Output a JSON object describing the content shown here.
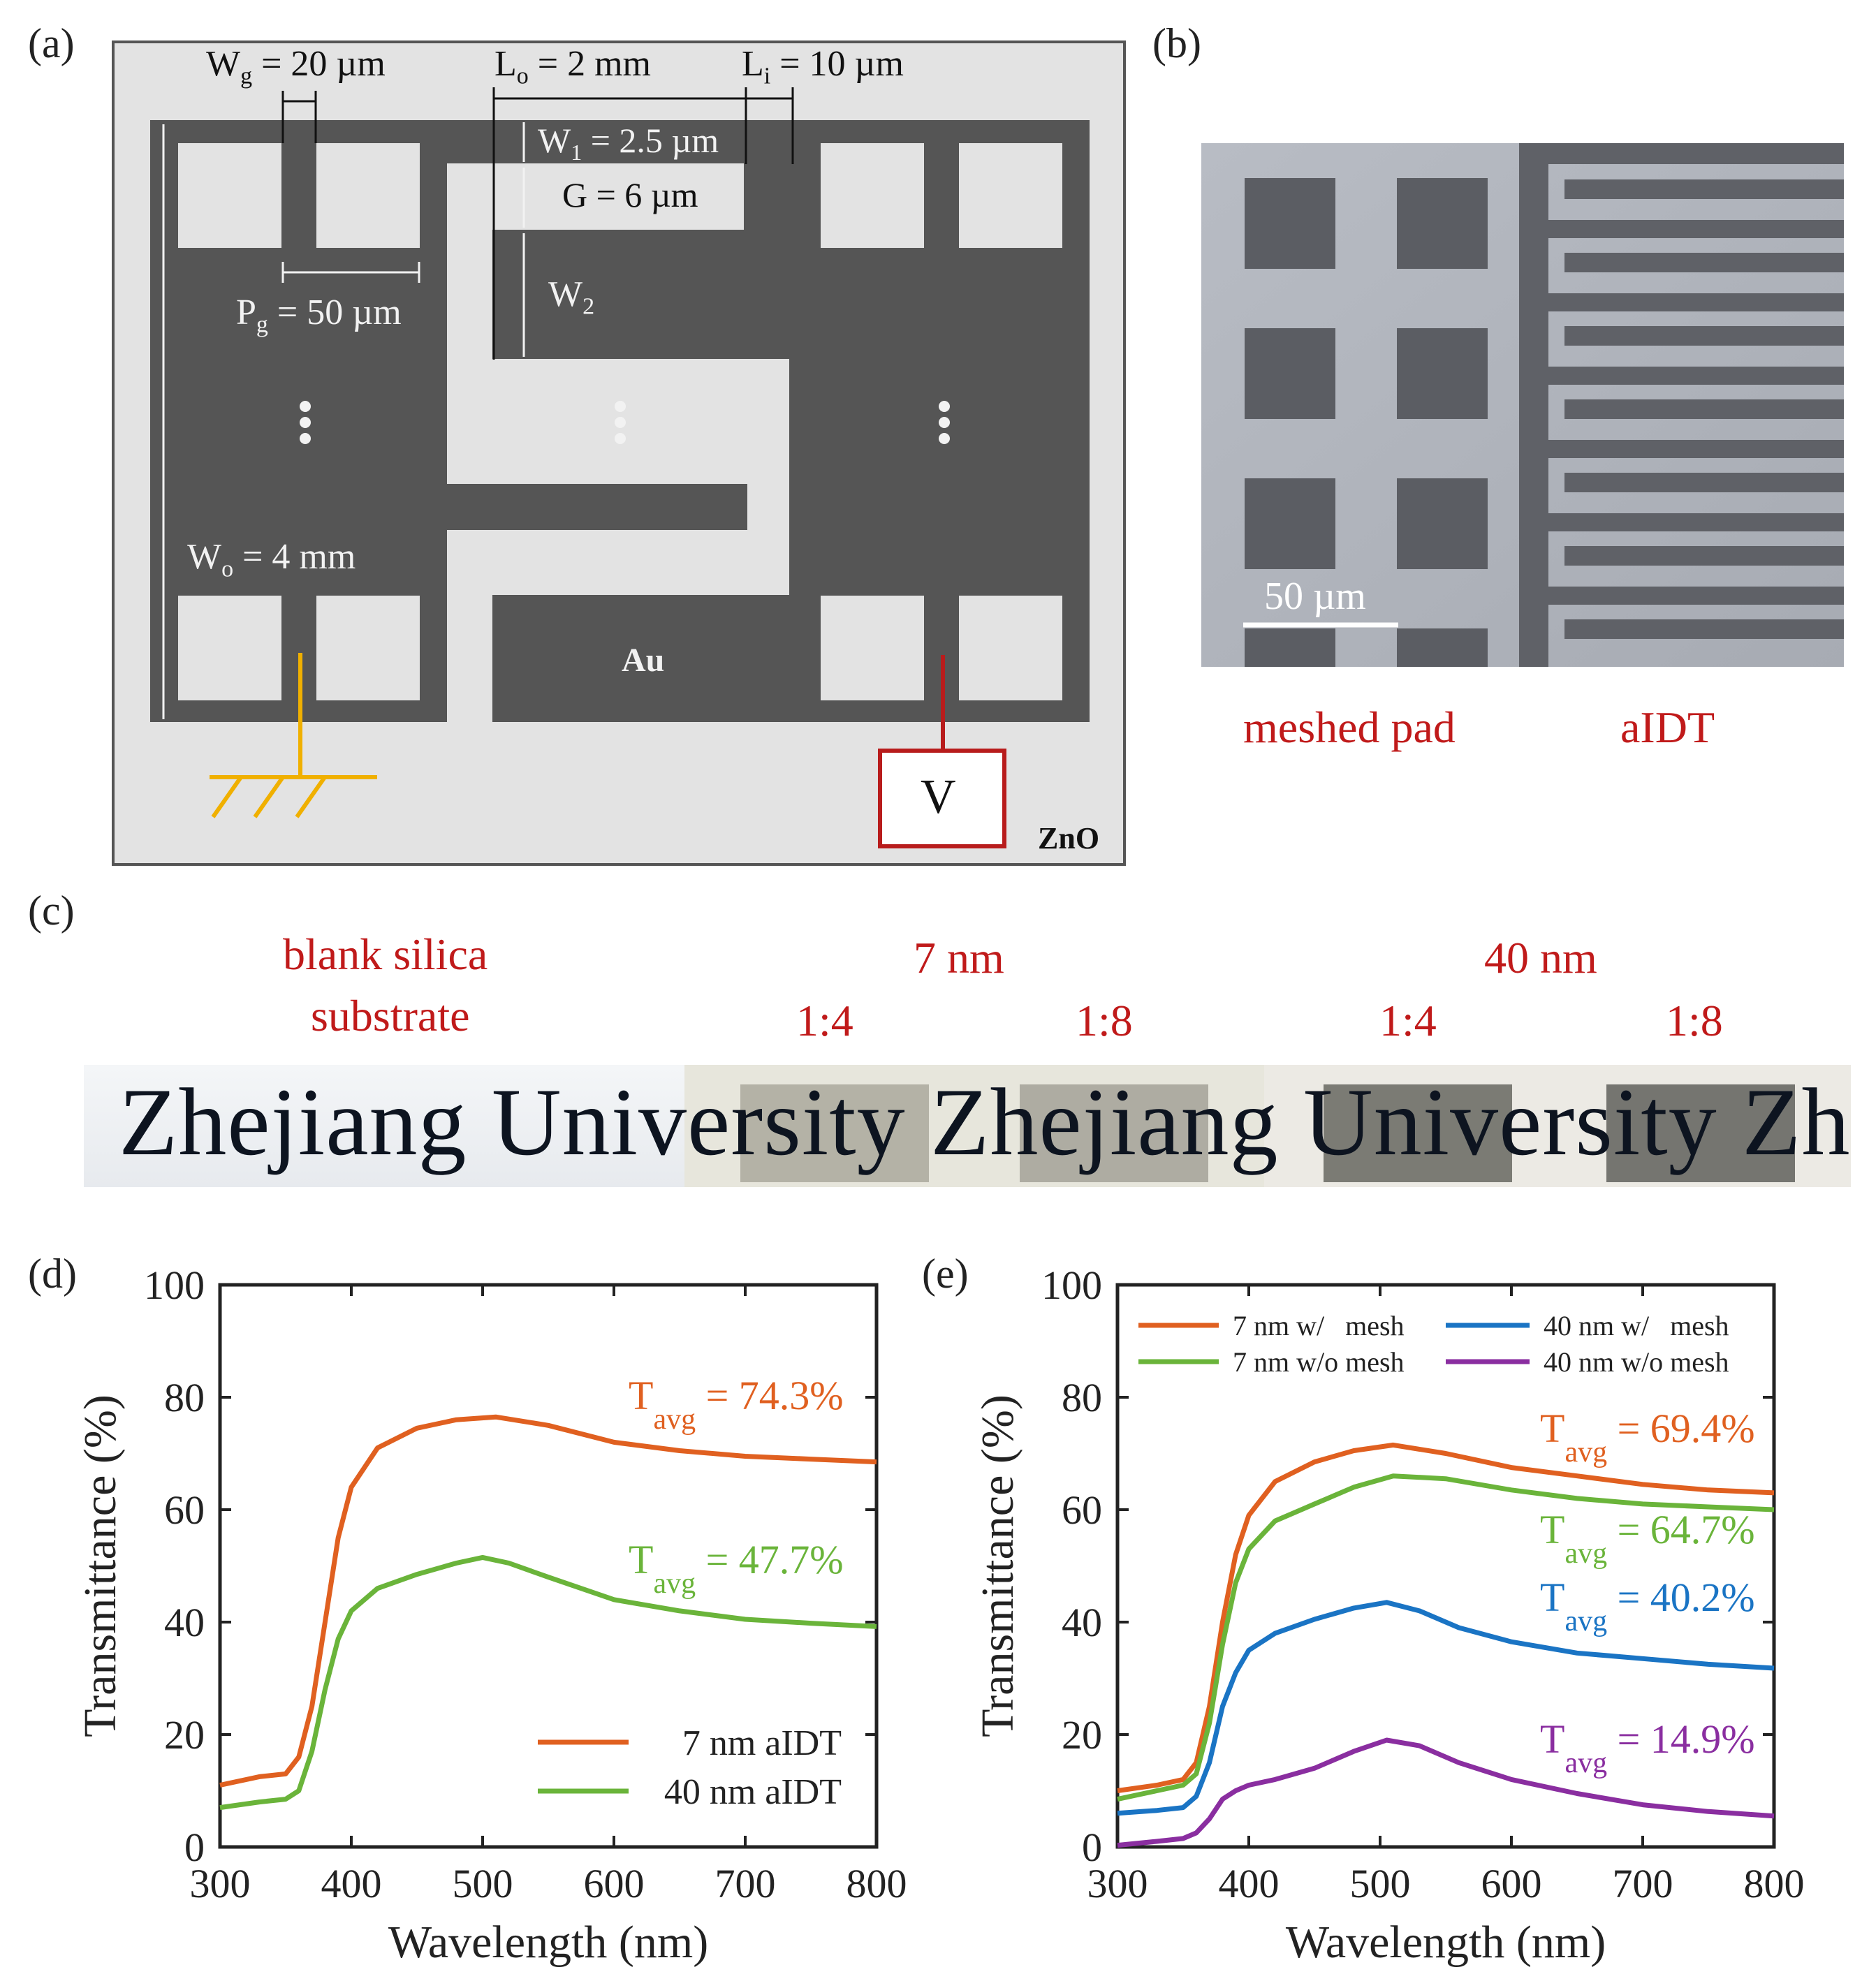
{
  "panels": {
    "a": {
      "tag": "(a)",
      "labels": {
        "wg_main": "W",
        "wg_sub": "g",
        "wg_val": " = 20 µm",
        "lo_main": "L",
        "lo_sub": "o",
        "lo_val": " = 2 mm",
        "li_main": "L",
        "li_sub": "i",
        "li_val": " = 10 µm",
        "w1_main": "W",
        "w1_sub": "1",
        "w1_val": " = 2.5 µm",
        "g_text": "G = 6 µm",
        "w2_main": "W",
        "w2_sub": "2",
        "pg_main": "P",
        "pg_sub": "g",
        "pg_val": " = 50 µm",
        "wo_main": "W",
        "wo_sub": "o",
        "wo_val": " = 4 mm",
        "au": "Au",
        "zno": "ZnO",
        "v": "V"
      },
      "colors": {
        "metal": "#555555",
        "substrate": "#e3e3e3",
        "ground": "#f0b000",
        "source": "#b81c1c"
      }
    },
    "b": {
      "tag": "(b)",
      "scalebar": "50 µm",
      "caption_left": "meshed pad",
      "caption_right": "aIDT"
    },
    "c": {
      "tag": "(c)",
      "blank_line1": "blank silica",
      "blank_line2": "substrate",
      "group1": "7 nm",
      "group2": "40 nm",
      "r1": "1:4",
      "r2": "1:8",
      "r3": "1:4",
      "r4": "1:8",
      "photo_text": "Zhejiang University Zhejiang University Zhejiang"
    },
    "d": {
      "tag": "(d)"
    },
    "e": {
      "tag": "(e)"
    }
  },
  "chart_data": [
    {
      "type": "line",
      "title": "",
      "xlabel": "Wavelength (nm)",
      "ylabel": "Transmittance (%)",
      "xlim": [
        300,
        800
      ],
      "ylim": [
        0,
        100
      ],
      "xticks": [
        "300",
        "400",
        "500",
        "600",
        "700",
        "800"
      ],
      "yticks": [
        "0",
        "20",
        "40",
        "60",
        "80",
        "100"
      ],
      "legend_position": "bottom-right",
      "series": [
        {
          "name": "7 nm aIDT",
          "color": "#e06020",
          "x": [
            300,
            330,
            350,
            360,
            370,
            380,
            390,
            400,
            420,
            450,
            480,
            510,
            550,
            600,
            650,
            700,
            750,
            800
          ],
          "y": [
            11,
            12.5,
            13,
            16,
            25,
            40,
            55,
            64,
            71,
            74.5,
            76,
            76.5,
            75,
            72,
            70.5,
            69.5,
            69,
            68.5
          ]
        },
        {
          "name": "40 nm aIDT",
          "color": "#6ab43a",
          "x": [
            300,
            330,
            350,
            360,
            370,
            380,
            390,
            400,
            420,
            450,
            480,
            500,
            520,
            550,
            600,
            650,
            700,
            750,
            800
          ],
          "y": [
            7,
            8,
            8.5,
            10,
            17,
            28,
            37,
            42,
            46,
            48.5,
            50.5,
            51.5,
            50.5,
            48,
            44,
            42,
            40.5,
            39.8,
            39.2
          ]
        }
      ],
      "annotations": [
        {
          "main": "T",
          "sub": "avg",
          "value": " = 74.3%",
          "color": "#e06020"
        },
        {
          "main": "T",
          "sub": "avg",
          "value": " = 47.7%",
          "color": "#6ab43a"
        }
      ]
    },
    {
      "type": "line",
      "title": "",
      "xlabel": "Wavelength (nm)",
      "ylabel": "Transmittance (%)",
      "xlim": [
        300,
        800
      ],
      "ylim": [
        0,
        100
      ],
      "xticks": [
        "300",
        "400",
        "500",
        "600",
        "700",
        "800"
      ],
      "yticks": [
        "0",
        "20",
        "40",
        "60",
        "80",
        "100"
      ],
      "legend_position": "top",
      "series": [
        {
          "name": "7 nm w/   mesh",
          "color": "#e06020",
          "x": [
            300,
            330,
            350,
            360,
            370,
            380,
            390,
            400,
            420,
            450,
            480,
            510,
            550,
            600,
            650,
            700,
            750,
            800
          ],
          "y": [
            10,
            11,
            12,
            15,
            25,
            40,
            52,
            59,
            65,
            68.5,
            70.5,
            71.5,
            70,
            67.5,
            66,
            64.5,
            63.5,
            63
          ]
        },
        {
          "name": "7 nm w/o mesh",
          "color": "#6ab43a",
          "x": [
            300,
            330,
            350,
            360,
            370,
            380,
            390,
            400,
            420,
            450,
            480,
            510,
            550,
            600,
            650,
            700,
            750,
            800
          ],
          "y": [
            8.5,
            10,
            11,
            13,
            22,
            36,
            47,
            53,
            58,
            61,
            64,
            66,
            65.5,
            63.5,
            62,
            61,
            60.5,
            60
          ]
        },
        {
          "name": "40 nm w/   mesh",
          "color": "#1a74c4",
          "x": [
            300,
            330,
            350,
            360,
            370,
            380,
            390,
            400,
            420,
            450,
            480,
            505,
            530,
            560,
            600,
            650,
            700,
            750,
            800
          ],
          "y": [
            6,
            6.5,
            7,
            9,
            15,
            25,
            31,
            35,
            38,
            40.5,
            42.5,
            43.5,
            42,
            39,
            36.5,
            34.5,
            33.5,
            32.5,
            31.8
          ]
        },
        {
          "name": "40 nm w/o mesh",
          "color": "#8a2ea0",
          "x": [
            300,
            330,
            350,
            360,
            370,
            380,
            390,
            400,
            420,
            450,
            480,
            505,
            530,
            560,
            600,
            650,
            700,
            750,
            800
          ],
          "y": [
            0.3,
            1,
            1.5,
            2.5,
            5,
            8.5,
            10,
            11,
            12,
            14,
            17,
            19,
            18,
            15,
            12,
            9.5,
            7.5,
            6.3,
            5.5
          ]
        }
      ],
      "annotations": [
        {
          "main": "T",
          "sub": "avg",
          "value": " = 69.4%",
          "color": "#e06020"
        },
        {
          "main": "T",
          "sub": "avg",
          "value": " = 64.7%",
          "color": "#6ab43a"
        },
        {
          "main": "T",
          "sub": "avg",
          "value": " = 40.2%",
          "color": "#1a74c4"
        },
        {
          "main": "T",
          "sub": "avg",
          "value": " = 14.9%",
          "color": "#8a2ea0"
        }
      ]
    }
  ]
}
